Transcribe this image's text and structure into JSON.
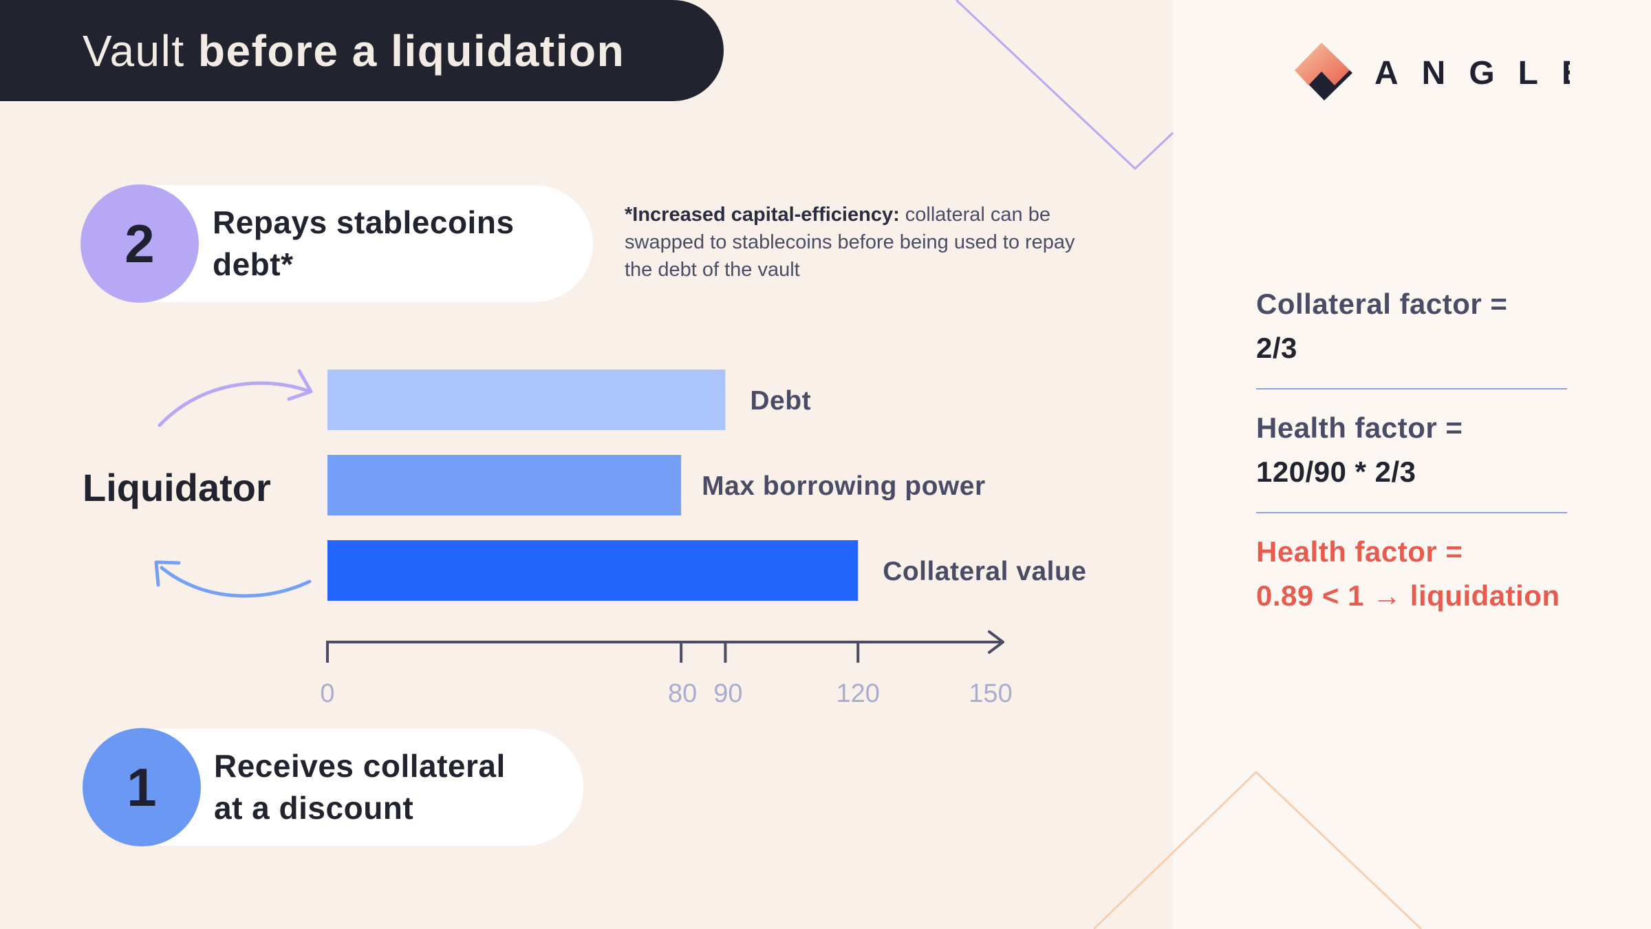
{
  "title": {
    "light": "Vault ",
    "bold": "before a liquidation"
  },
  "brand": {
    "name": "ANGLE",
    "logo_icon": "angle-logo-icon"
  },
  "step2": {
    "number": "2",
    "line1": "Repays stablecoins",
    "line2": "debt*",
    "color": "#b7a8f6"
  },
  "step1": {
    "number": "1",
    "line1": "Receives collateral",
    "line2": "at a discount",
    "color": "#6a98f3"
  },
  "note": {
    "bold": "*Increased capital-efficiency:",
    "line1_rest": " collateral can be",
    "line2": "swapped to stablecoins before being used to repay",
    "line3": "the debt of the vault"
  },
  "liquidator_label": "Liquidator",
  "chart_data": {
    "type": "bar",
    "orientation": "horizontal",
    "categories": [
      "Debt",
      "Max borrowing power",
      "Collateral value"
    ],
    "values": [
      90,
      80,
      120
    ],
    "colors": [
      "#abc4fb",
      "#769ff7",
      "#2365fb"
    ],
    "x_ticks": [
      0,
      80,
      90,
      120,
      150
    ],
    "xlim": [
      0,
      150
    ],
    "grid": false
  },
  "factors": [
    {
      "label": "Collateral factor =",
      "value": "2/3"
    },
    {
      "label": "Health factor =",
      "value": "120/90 * 2/3"
    },
    {
      "label": "Health factor =",
      "value": "0.89 < 1 → liquidation",
      "alert": true
    }
  ],
  "colors": {
    "dark": "#21232f",
    "background": "#f9f1e9",
    "alert": "#e85c4e",
    "arrow_top": "#b7a8f6",
    "arrow_bottom": "#769ff7"
  }
}
